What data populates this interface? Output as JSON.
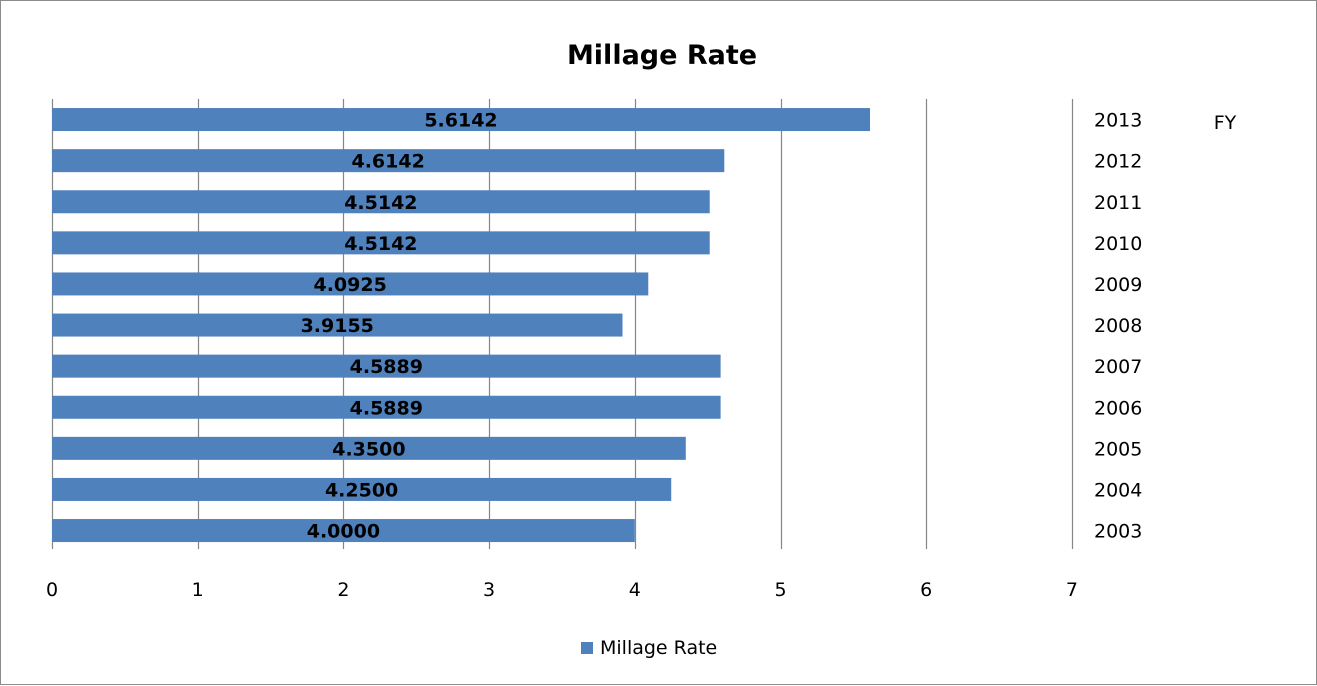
{
  "chart_data": {
    "type": "bar",
    "orientation": "horizontal",
    "title": "Millage Rate",
    "categories": [
      "2013",
      "2012",
      "2011",
      "2010",
      "2009",
      "2008",
      "2007",
      "2006",
      "2005",
      "2004",
      "2003"
    ],
    "category_axis_title": "FY",
    "series": [
      {
        "name": "Millage Rate",
        "color": "#4f81bd",
        "values": [
          5.6142,
          4.6142,
          4.5142,
          4.5142,
          4.0925,
          3.9155,
          4.5889,
          4.5889,
          4.35,
          4.25,
          4.0
        ],
        "labels": [
          "5.6142",
          "4.6142",
          "4.5142",
          "4.5142",
          "4.0925",
          "3.9155",
          "4.5889",
          "4.5889",
          "4.3500",
          "4.2500",
          "4.0000"
        ]
      }
    ],
    "xlim": [
      0,
      7
    ],
    "xticks": [
      "0",
      "1",
      "2",
      "3",
      "4",
      "5",
      "6",
      "7"
    ],
    "grid": true,
    "legend": "bottom",
    "gridline_color": "#868686",
    "background": "#ffffff"
  }
}
